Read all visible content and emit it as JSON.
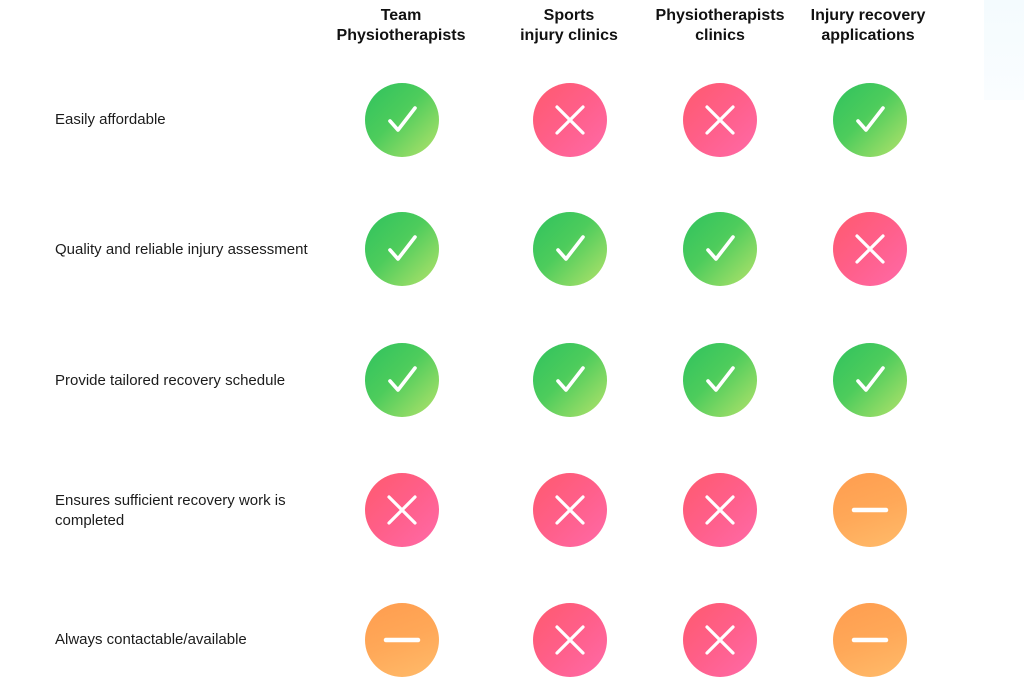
{
  "columns": [
    {
      "line1": "Team",
      "line2": "Physiotherapists"
    },
    {
      "line1": "Sports",
      "line2": "injury clinics"
    },
    {
      "line1": "Physiotherapists",
      "line2": "clinics"
    },
    {
      "line1": "Injury recovery",
      "line2": "applications"
    }
  ],
  "rows": [
    {
      "line1": "Easily affordable",
      "line2": "",
      "values": [
        "yes",
        "no",
        "no",
        "yes"
      ]
    },
    {
      "line1": "Quality and reliable injury assessment",
      "line2": "",
      "values": [
        "yes",
        "yes",
        "yes",
        "no"
      ]
    },
    {
      "line1": "Provide tailored recovery schedule",
      "line2": "",
      "values": [
        "yes",
        "yes",
        "yes",
        "yes"
      ]
    },
    {
      "line1": "Ensures sufficient recovery work is",
      "line2": "completed",
      "values": [
        "no",
        "no",
        "no",
        "partial"
      ]
    },
    {
      "line1": "Always contactable/available",
      "line2": "",
      "values": [
        "partial",
        "no",
        "no",
        "partial"
      ]
    }
  ],
  "legend_icons": {
    "yes": "checkmark-icon",
    "no": "cross-icon",
    "partial": "minus-icon"
  },
  "colors": {
    "yes": "#3cc65c",
    "no": "#ff5c82",
    "partial": "#ffa65a",
    "text": "#1c1c1c"
  }
}
